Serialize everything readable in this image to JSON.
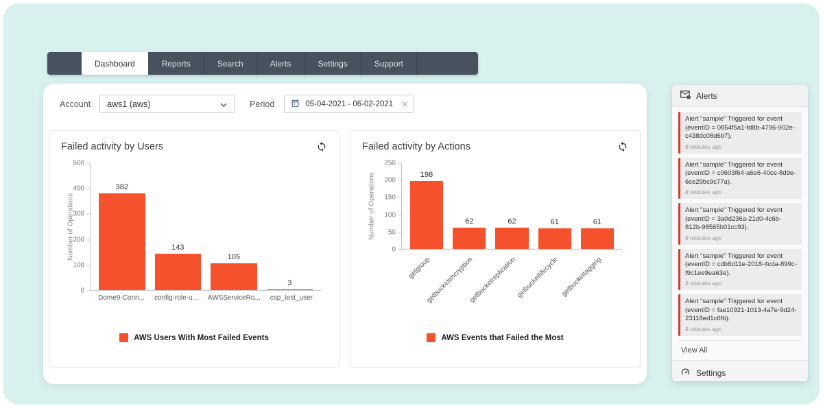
{
  "nav": {
    "tabs": [
      {
        "label": "Dashboard",
        "active": true
      },
      {
        "label": "Reports",
        "active": false
      },
      {
        "label": "Search",
        "active": false
      },
      {
        "label": "Alerts",
        "active": false
      },
      {
        "label": "Settings",
        "active": false
      },
      {
        "label": "Support",
        "active": false
      }
    ]
  },
  "filters": {
    "account_label": "Account",
    "account_value": "aws1 (aws)",
    "period_label": "Period",
    "period_value": "05-04-2021 - 06-02-2021",
    "clear_label": "×"
  },
  "chart_data": [
    {
      "type": "bar",
      "title": "Failed activity by Users",
      "ylabel": "Number of Operations",
      "ylim": [
        0,
        500
      ],
      "yticks": [
        0,
        100,
        200,
        300,
        400,
        500
      ],
      "categories": [
        "Dome9-Conn...",
        "config-role-u...",
        "AWSServiceRo...",
        "csp_test_user"
      ],
      "values": [
        382,
        143,
        105,
        3
      ],
      "legend": "AWS Users With Most Failed Events",
      "bar_color": "#f4512c",
      "rotate_xlabels": false,
      "grid": false,
      "legend_position": "bottom"
    },
    {
      "type": "bar",
      "title": "Failed activity by Actions",
      "ylabel": "Number of Operations",
      "ylim": [
        0,
        250
      ],
      "yticks": [
        0,
        50,
        100,
        150,
        200,
        250
      ],
      "categories": [
        "getgroup",
        "getbucketencryption",
        "getbucketreplication",
        "getbucketlifecycle",
        "getbuckettagging"
      ],
      "values": [
        198,
        62,
        62,
        61,
        61
      ],
      "legend": "AWS Events that Failed the Most",
      "bar_color": "#f4512c",
      "rotate_xlabels": true,
      "grid": false,
      "legend_position": "bottom"
    }
  ],
  "alerts_panel": {
    "title": "Alerts",
    "items": [
      {
        "text": "Alert \"sample\" Triggered for event (eventID = 0854f5a1-fd8b-4796-902e-c438dc08d6b7).",
        "time": "8 minutes ago"
      },
      {
        "text": "Alert \"sample\" Triggered for event (eventID = c0603f64-a6e6-40ce-8d9e-6ce29bc9c77a).",
        "time": "8 minutes ago"
      },
      {
        "text": "Alert \"sample\" Triggered for event (eventID = 3a0d236a-21d0-4c6b-812b-98565b01cc93).",
        "time": "8 minutes ago"
      },
      {
        "text": "Alert \"sample\" Triggered for event (eventID = cdb8d11e-2018-4cda-899c-f9c1ee9ea63e).",
        "time": "8 minutes ago"
      },
      {
        "text": "Alert \"sample\" Triggered for event (eventID = fae10921-1013-4a7e-9d24-23118ed1c6fb).",
        "time": "8 minutes ago"
      }
    ],
    "view_all": "View All",
    "settings_label": "Settings"
  },
  "colors": {
    "accent": "#f4512c",
    "alert_accent": "#d23b2f",
    "nav_bg": "#47525e"
  }
}
